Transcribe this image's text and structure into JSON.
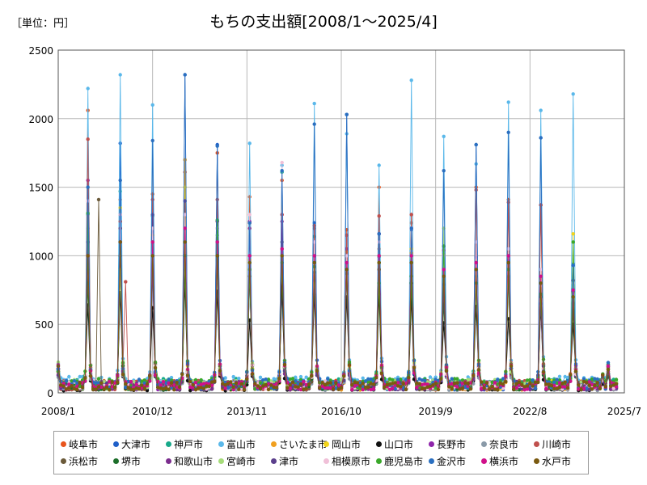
{
  "unit_label": "［単位：円］",
  "title": "もちの支出額[2008/1～2025/4]",
  "chart_data": {
    "type": "line",
    "x_start": "2008-01",
    "x_end": "2025-04",
    "xlim": [
      "2008-01",
      "2025-07"
    ],
    "x_ticks": [
      "2008/1",
      "2010/12",
      "2013/11",
      "2016/10",
      "2019/9",
      "2022/8",
      "2025/7"
    ],
    "ylim": [
      0,
      2500
    ],
    "y_ticks": [
      "0",
      "500",
      "1000",
      "1500",
      "2000",
      "2500"
    ],
    "grid": true,
    "legend_position": "bottom",
    "peak_month": 12,
    "series": [
      {
        "name": "岐阜市",
        "color": "#e8541c",
        "peaks": [
          2060,
          1410,
          1450,
          1610,
          1750,
          1430,
          1550,
          1200,
          1190,
          1500,
          1300,
          1070,
          1500,
          1410,
          1370,
          730
        ],
        "base": 60
      },
      {
        "name": "大津市",
        "color": "#1f5fc8",
        "peaks": [
          1200,
          1820,
          880,
          2320,
          1810,
          820,
          720,
          1240,
          2030,
          1160,
          1190,
          780,
          1810,
          950,
          1860,
          940
        ],
        "base": 55
      },
      {
        "name": "神戸市",
        "color": "#17a98a",
        "peaks": [
          1300,
          1470,
          1290,
          1280,
          990,
          830,
          1610,
          1140,
          930,
          990,
          730,
          900,
          850,
          820,
          720,
          760
        ],
        "base": 70
      },
      {
        "name": "富山市",
        "color": "#5ab8ea",
        "peaks": [
          2220,
          2320,
          2100,
          1700,
          1200,
          1820,
          1660,
          2110,
          1890,
          1660,
          2280,
          1870,
          1670,
          2120,
          2060,
          2180
        ],
        "base": 80
      },
      {
        "name": "さいたま市",
        "color": "#f0a020",
        "peaks": [
          1000,
          1200,
          1200,
          1700,
          1250,
          970,
          1050,
          950,
          1030,
          900,
          1020,
          1000,
          1000,
          1040,
          840,
          730
        ],
        "base": 50
      },
      {
        "name": "岡山市",
        "color": "#f2d41a",
        "peaks": [
          1100,
          1350,
          1150,
          1500,
          1100,
          1000,
          1100,
          1000,
          1050,
          950,
          1050,
          1010,
          960,
          1000,
          760,
          1160
        ],
        "base": 60
      },
      {
        "name": "山口市",
        "color": "#111111",
        "peaks": [
          640,
          730,
          620,
          800,
          740,
          530,
          800,
          720,
          700,
          720,
          690,
          510,
          630,
          540,
          620,
          500
        ],
        "base": 40
      },
      {
        "name": "長野市",
        "color": "#8e24aa",
        "peaks": [
          1550,
          1100,
          900,
          1000,
          1200,
          1250,
          1300,
          1100,
          1050,
          1000,
          1200,
          800,
          900,
          950,
          650,
          640
        ],
        "base": 55
      },
      {
        "name": "奈良市",
        "color": "#8a9aa8",
        "peaks": [
          800,
          900,
          1000,
          1100,
          900,
          850,
          950,
          900,
          850,
          1050,
          1240,
          800,
          780,
          900,
          800,
          700
        ],
        "base": 45
      },
      {
        "name": "川崎市",
        "color": "#c0504d",
        "peaks": [
          1850,
          1250,
          1410,
          1400,
          1410,
          1240,
          1300,
          1220,
          1150,
          1290,
          1300,
          1040,
          1480,
          1390,
          1370,
          660
        ],
        "base": 60
      },
      {
        "name": "浜松市",
        "color": "#6b5a3a",
        "peaks": [
          900,
          1000,
          1100,
          900,
          1000,
          900,
          950,
          950,
          870,
          900,
          800,
          700,
          900,
          850,
          700,
          650
        ],
        "base": 55
      },
      {
        "name": "堺市",
        "color": "#1c6e2a",
        "peaks": [
          800,
          900,
          1000,
          900,
          1000,
          850,
          950,
          880,
          900,
          950,
          800,
          650,
          850,
          900,
          700,
          600
        ],
        "base": 50
      },
      {
        "name": "和歌山市",
        "color": "#7b2d8e",
        "peaks": [
          1400,
          1300,
          1000,
          1100,
          1250,
          1200,
          1250,
          820,
          950,
          1160,
          1200,
          780,
          990,
          960,
          650,
          820
        ],
        "base": 55
      },
      {
        "name": "宮崎市",
        "color": "#a6dc7a",
        "peaks": [
          1000,
          900,
          1100,
          1000,
          1150,
          900,
          1050,
          900,
          950,
          1000,
          980,
          1200,
          900,
          1000,
          850,
          1100
        ],
        "base": 65
      },
      {
        "name": "津市",
        "color": "#5b3f8c",
        "peaks": [
          1100,
          1200,
          1300,
          1400,
          1100,
          1000,
          1100,
          1000,
          900,
          1160,
          1200,
          790,
          950,
          960,
          650,
          740
        ],
        "base": 55
      },
      {
        "name": "相模原市",
        "color": "#f0c0d8",
        "peaks": [
          1400,
          1300,
          1200,
          1300,
          1200,
          1300,
          1680,
          1100,
          1000,
          1100,
          1200,
          1000,
          1100,
          1050,
          900,
          800
        ],
        "base": 60
      },
      {
        "name": "鹿児島市",
        "color": "#3aa82a",
        "peaks": [
          1310,
          1100,
          1100,
          1000,
          1260,
          900,
          950,
          920,
          900,
          800,
          850,
          1070,
          800,
          900,
          720,
          1100
        ],
        "base": 70
      },
      {
        "name": "金沢市",
        "color": "#2a6fc0",
        "peaks": [
          1500,
          1550,
          1840,
          2320,
          1800,
          1240,
          1620,
          1960,
          2030,
          1160,
          1200,
          1620,
          1810,
          1900,
          1860,
          930
        ],
        "base": 70
      },
      {
        "name": "横浜市",
        "color": "#d0108a",
        "peaks": [
          1000,
          1100,
          1100,
          1200,
          1100,
          1000,
          1050,
          1000,
          950,
          1000,
          1000,
          900,
          950,
          1000,
          850,
          750
        ],
        "base": 55
      },
      {
        "name": "水戸市",
        "color": "#7a5a10",
        "peaks": [
          1000,
          1100,
          1000,
          1100,
          1000,
          950,
          1000,
          950,
          900,
          950,
          950,
          850,
          900,
          950,
          800,
          700
        ],
        "base": 55
      }
    ],
    "extra_spikes": [
      {
        "series": "浜松市",
        "date": "2009-04",
        "value": 1410
      },
      {
        "series": "川崎市",
        "date": "2010-02",
        "value": 810
      }
    ]
  }
}
